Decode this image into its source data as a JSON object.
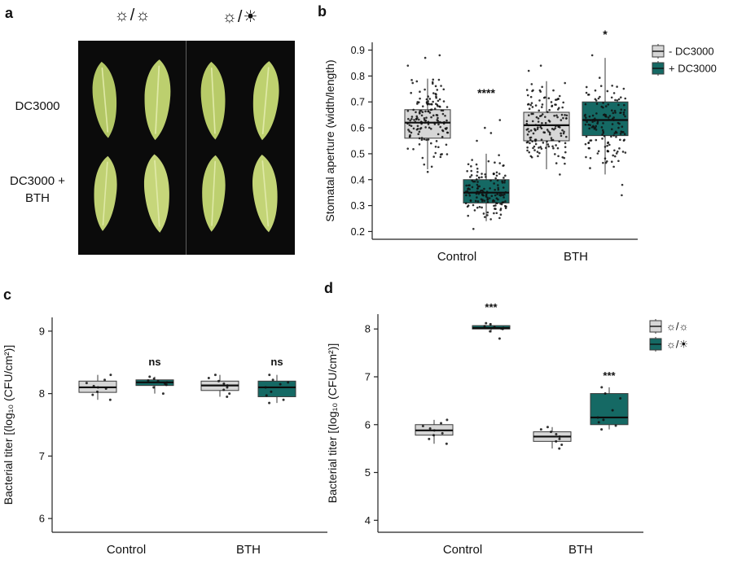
{
  "panel_a": {
    "label": "a",
    "conditions": [
      "☼/☼",
      "☼/☀"
    ],
    "rows": [
      {
        "label": "DC3000"
      },
      {
        "line1": "DC3000 +",
        "line2": "BTH"
      }
    ]
  },
  "panel_b": {
    "label": "b"
  },
  "panel_c": {
    "label": "c"
  },
  "panel_d": {
    "label": "d"
  },
  "colors": {
    "minus_dc3000": "#d6d6d6",
    "plus_dc3000": "#156964",
    "box_stroke": "#3a3a3a",
    "point": "#111111"
  },
  "chart_data": [
    {
      "id": "chart-b",
      "type": "boxplot",
      "title": "",
      "ylabel": "Stomatal aperture (width/length)",
      "yticks": [
        0.2,
        0.3,
        0.4,
        0.5,
        0.6,
        0.7,
        0.8,
        0.9
      ],
      "ylim": [
        0.17,
        0.93
      ],
      "categories": [
        "Control",
        "BTH"
      ],
      "legend": [
        {
          "label": "- DC3000",
          "color": "#d6d6d6"
        },
        {
          "label": "+ DC3000",
          "color": "#156964"
        }
      ],
      "groups": [
        {
          "category": "Control",
          "series": "- DC3000",
          "color": "#d6d6d6",
          "lo": 0.44,
          "q1": 0.56,
          "median": 0.62,
          "q3": 0.67,
          "hi": 0.79,
          "n": 155,
          "outliers": [
            0.84,
            0.87,
            0.88,
            0.43
          ],
          "sig": "",
          "sig_y": null
        },
        {
          "category": "Control",
          "series": "+ DC3000",
          "color": "#156964",
          "lo": 0.24,
          "q1": 0.31,
          "median": 0.35,
          "q3": 0.4,
          "hi": 0.5,
          "n": 150,
          "outliers": [
            0.55,
            0.58,
            0.6,
            0.63,
            0.21
          ],
          "sig": "****",
          "sig_y": 0.72
        },
        {
          "category": "BTH",
          "series": "- DC3000",
          "color": "#d6d6d6",
          "lo": 0.44,
          "q1": 0.55,
          "median": 0.61,
          "q3": 0.66,
          "hi": 0.78,
          "n": 150,
          "outliers": [
            0.82,
            0.84,
            0.42
          ],
          "sig": "",
          "sig_y": null
        },
        {
          "category": "BTH",
          "series": "+ DC3000",
          "color": "#156964",
          "lo": 0.42,
          "q1": 0.57,
          "median": 0.63,
          "q3": 0.7,
          "hi": 0.87,
          "n": 145,
          "outliers": [
            0.34,
            0.38,
            0.88
          ],
          "sig": "*",
          "sig_y": 0.945
        }
      ]
    },
    {
      "id": "chart-c",
      "type": "boxplot",
      "title": "",
      "ylabel": "Bacterial titer [(log₁₀ (CFU/cm²)]",
      "yticks": [
        6,
        7,
        8,
        9
      ],
      "ylim": [
        5.78,
        9.22
      ],
      "categories": [
        "Control",
        "BTH"
      ],
      "legend": null,
      "groups": [
        {
          "category": "Control",
          "series": "- DC3000",
          "color": "#d6d6d6",
          "lo": 7.9,
          "q1": 8.02,
          "median": 8.1,
          "q3": 8.2,
          "hi": 8.3,
          "points": [
            7.9,
            7.98,
            8.03,
            8.08,
            8.1,
            8.12,
            8.17,
            8.22,
            8.3
          ],
          "sig": "",
          "sig_y": null
        },
        {
          "category": "Control",
          "series": "+ DC3000",
          "color": "#156964",
          "lo": 8.0,
          "q1": 8.13,
          "median": 8.18,
          "q3": 8.22,
          "hi": 8.27,
          "points": [
            8.0,
            8.1,
            8.14,
            8.16,
            8.18,
            8.2,
            8.21,
            8.24,
            8.27
          ],
          "sig": "ns",
          "sig_y": 8.45
        },
        {
          "category": "BTH",
          "series": "- DC3000",
          "color": "#d6d6d6",
          "lo": 7.95,
          "q1": 8.05,
          "median": 8.13,
          "q3": 8.2,
          "hi": 8.3,
          "points": [
            7.95,
            8.0,
            8.06,
            8.1,
            8.13,
            8.16,
            8.2,
            8.25,
            8.3
          ],
          "sig": "",
          "sig_y": null
        },
        {
          "category": "BTH",
          "series": "+ DC3000",
          "color": "#156964",
          "lo": 7.85,
          "q1": 7.95,
          "median": 8.1,
          "q3": 8.2,
          "hi": 8.3,
          "points": [
            7.85,
            7.9,
            7.97,
            8.03,
            8.1,
            8.15,
            8.18,
            8.22,
            8.3
          ],
          "sig": "ns",
          "sig_y": 8.45
        }
      ]
    },
    {
      "id": "chart-d",
      "type": "boxplot",
      "title": "",
      "ylabel": "Bacterial titer [(log₁₀ (CFU/cm²)]",
      "yticks": [
        4,
        5,
        6,
        7,
        8
      ],
      "ylim": [
        3.75,
        8.31
      ],
      "categories": [
        "Control",
        "BTH"
      ],
      "legend": [
        {
          "label": "☼/☼",
          "color": "#d6d6d6"
        },
        {
          "label": "☼/☀",
          "color": "#156964"
        }
      ],
      "groups": [
        {
          "category": "Control",
          "series": "light/light",
          "color": "#d6d6d6",
          "lo": 5.6,
          "q1": 5.78,
          "median": 5.88,
          "q3": 6.0,
          "hi": 6.1,
          "points": [
            5.6,
            5.7,
            5.78,
            5.82,
            5.88,
            5.92,
            5.97,
            6.03,
            6.1
          ],
          "sig": "",
          "sig_y": null
        },
        {
          "category": "Control",
          "series": "light/dark",
          "color": "#156964",
          "lo": 7.93,
          "q1": 8.0,
          "median": 8.02,
          "q3": 8.07,
          "hi": 8.12,
          "points": [
            7.8,
            7.95,
            8.0,
            8.01,
            8.02,
            8.04,
            8.06,
            8.1,
            8.12
          ],
          "sig": "***",
          "sig_y": 8.38
        },
        {
          "category": "BTH",
          "series": "light/light",
          "color": "#d6d6d6",
          "lo": 5.5,
          "q1": 5.65,
          "median": 5.75,
          "q3": 5.85,
          "hi": 5.95,
          "points": [
            5.5,
            5.58,
            5.65,
            5.7,
            5.75,
            5.8,
            5.85,
            5.9,
            5.95
          ],
          "sig": "",
          "sig_y": null
        },
        {
          "category": "BTH",
          "series": "light/dark",
          "color": "#156964",
          "lo": 5.9,
          "q1": 6.0,
          "median": 6.15,
          "q3": 6.65,
          "hi": 6.78,
          "points": [
            5.9,
            5.98,
            6.05,
            6.1,
            6.15,
            6.3,
            6.55,
            6.65,
            6.78
          ],
          "sig": "***",
          "sig_y": 6.95
        }
      ]
    }
  ]
}
